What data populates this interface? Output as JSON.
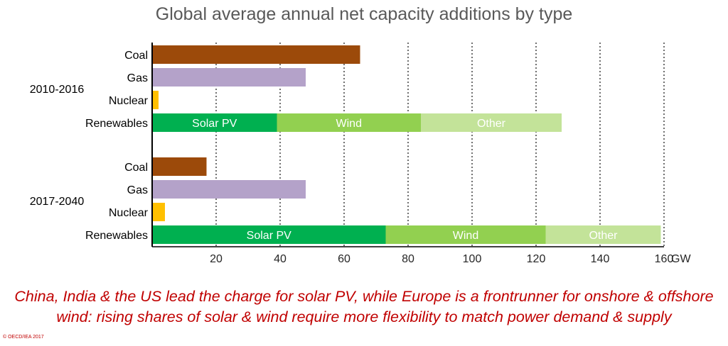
{
  "chart_data": {
    "type": "bar",
    "orientation": "horizontal",
    "stacked": true,
    "title": "Global average annual net capacity additions by type",
    "xlabel": "GW",
    "xlim": [
      0,
      160
    ],
    "xticks": [
      20,
      40,
      60,
      80,
      100,
      120,
      140,
      160
    ],
    "grid": "vertical dotted",
    "groups": [
      {
        "period": "2010-2016",
        "rows": [
          {
            "label": "Coal",
            "segments": [
              {
                "name": "",
                "value": 65,
                "color": "#9c4a0a"
              }
            ]
          },
          {
            "label": "Gas",
            "segments": [
              {
                "name": "",
                "value": 48,
                "color": "#b4a2c9"
              }
            ]
          },
          {
            "label": "Nuclear",
            "segments": [
              {
                "name": "",
                "value": 2,
                "color": "#ffc000"
              }
            ]
          },
          {
            "label": "Renewables",
            "segments": [
              {
                "name": "Solar PV",
                "value": 39,
                "color": "#00b050"
              },
              {
                "name": "Wind",
                "value": 45,
                "color": "#92d050"
              },
              {
                "name": "Other",
                "value": 44,
                "color": "#c3e399"
              }
            ]
          }
        ]
      },
      {
        "period": "2017-2040",
        "rows": [
          {
            "label": "Coal",
            "segments": [
              {
                "name": "",
                "value": 17,
                "color": "#9c4a0a"
              }
            ]
          },
          {
            "label": "Gas",
            "segments": [
              {
                "name": "",
                "value": 48,
                "color": "#b4a2c9"
              }
            ]
          },
          {
            "label": "Nuclear",
            "segments": [
              {
                "name": "",
                "value": 4,
                "color": "#ffc000"
              }
            ]
          },
          {
            "label": "Renewables",
            "segments": [
              {
                "name": "Solar PV",
                "value": 73,
                "color": "#00b050"
              },
              {
                "name": "Wind",
                "value": 50,
                "color": "#92d050"
              },
              {
                "name": "Other",
                "value": 36,
                "color": "#c3e399"
              }
            ]
          }
        ]
      }
    ]
  },
  "caption": "China, India & the US lead the charge for solar PV, while Europe is a frontrunner for onshore & offshore wind: rising shares of solar & wind require more flexibility to match power demand & supply",
  "copyright": "© OECD/IEA 2017"
}
